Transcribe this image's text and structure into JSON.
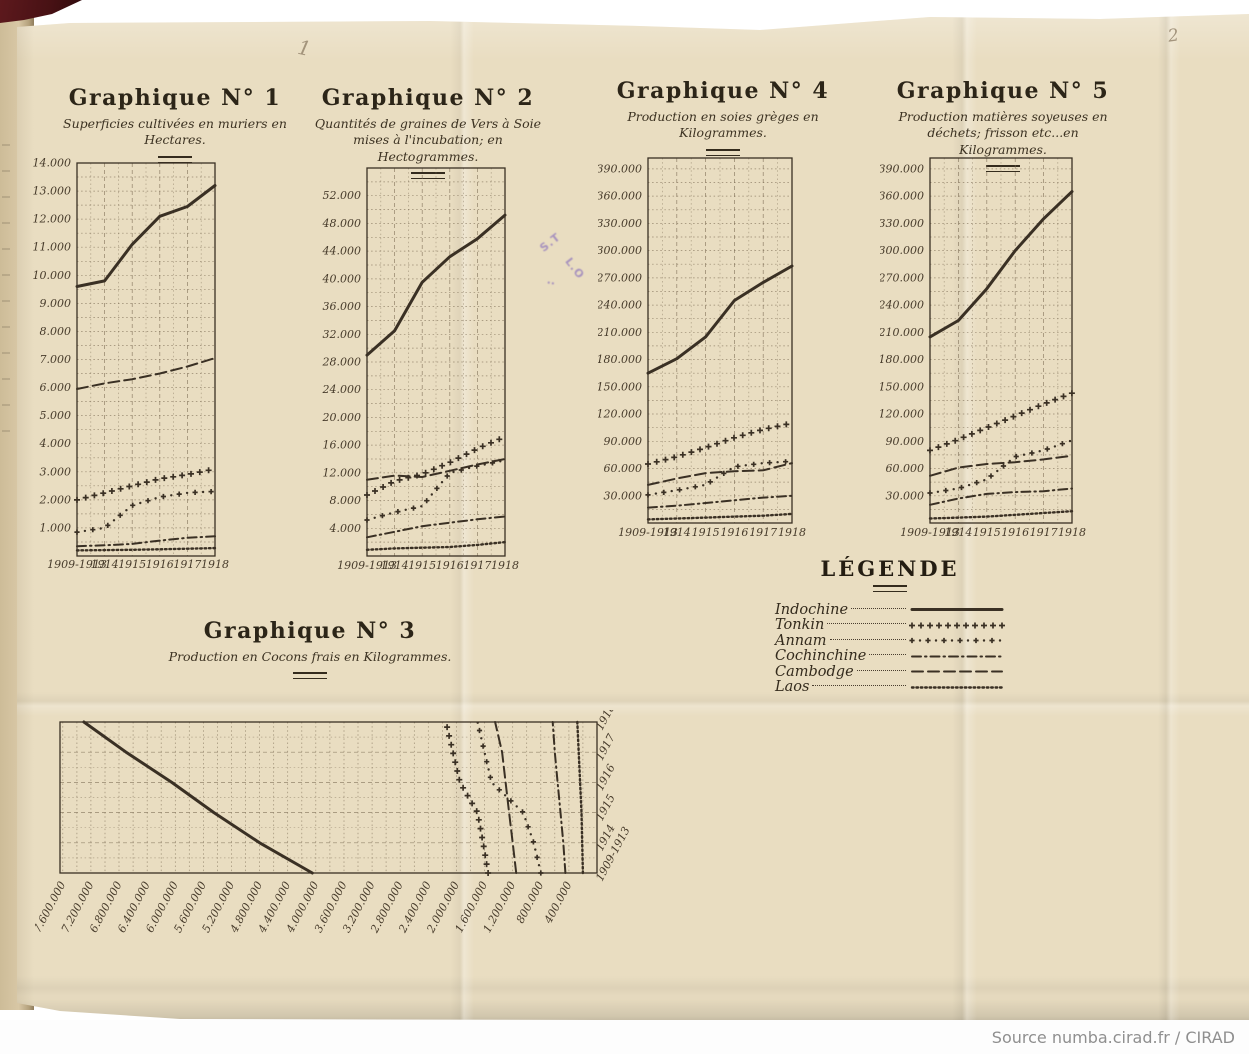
{
  "page": {
    "source_text": "Source numba.cirad.fr / CIRAD",
    "pencil_mark_left": "1",
    "pencil_mark_right": "2",
    "stamp": {
      "line1": "S.T",
      "line2": "L.O",
      "line3": "..",
      "color": "#8d74bd"
    },
    "paper_color": "#e9ddc1",
    "ink_color": "#3a3024"
  },
  "legend": {
    "title": "LÉGENDE",
    "position": "middle-right",
    "entries": [
      {
        "label": "Indochine",
        "style": "solid"
      },
      {
        "label": "Tonkin",
        "style": "plus"
      },
      {
        "label": "Annam",
        "style": "plusdot"
      },
      {
        "label": "Cochinchine",
        "style": "dashdot"
      },
      {
        "label": "Cambodge",
        "style": "dash"
      },
      {
        "label": "Laos",
        "style": "dots"
      }
    ]
  },
  "chart_data": [
    {
      "id": "g1",
      "type": "line",
      "orientation": "normal",
      "number_label": "Graphique N° 1",
      "subtitle": "Superficies cultivées en muriers en Hectares.",
      "categories": [
        "1909-1913",
        "1914",
        "1915",
        "1916",
        "1917",
        "1918"
      ],
      "ylim": [
        0,
        14000
      ],
      "ytick_step": 1000,
      "grid": "dotted",
      "yticks": [
        14000,
        13000,
        12000,
        11000,
        10000,
        9000,
        8000,
        7000,
        6000,
        5000,
        4000,
        3000,
        2000,
        1000
      ],
      "ytick_labels": [
        "14.000",
        "13.000",
        "12.000",
        "11.000",
        "10.000",
        "9.000",
        "8.000",
        "7.000",
        "6.000",
        "5.000",
        "4.000",
        "3.000",
        "2.000",
        "1.000"
      ],
      "series": [
        {
          "name": "Indochine",
          "style": "solid",
          "values": [
            9600,
            9800,
            11100,
            12100,
            12450,
            13200
          ]
        },
        {
          "name": "Tonkin",
          "style": "plus",
          "values": [
            2000,
            2250,
            2500,
            2750,
            2900,
            3100
          ]
        },
        {
          "name": "Annam",
          "style": "plusdot",
          "values": [
            850,
            1000,
            1800,
            2100,
            2250,
            2300
          ]
        },
        {
          "name": "Cochinchine",
          "style": "dashdot",
          "values": [
            350,
            380,
            430,
            550,
            650,
            700
          ]
        },
        {
          "name": "Cambodge",
          "style": "dash",
          "values": [
            5950,
            6150,
            6300,
            6500,
            6750,
            7050
          ]
        },
        {
          "name": "Laos",
          "style": "dots",
          "values": [
            200,
            210,
            220,
            240,
            260,
            280
          ]
        }
      ]
    },
    {
      "id": "g2",
      "type": "line",
      "orientation": "normal",
      "number_label": "Graphique N° 2",
      "subtitle": "Quantités de graines de Vers à Soie mises à l'incubation; en Hectogrammes.",
      "categories": [
        "1909-1913",
        "1914",
        "1915",
        "1916",
        "1917",
        "1918"
      ],
      "ylim": [
        0,
        56000
      ],
      "ytick_step": 4000,
      "grid": "dotted",
      "yticks": [
        52000,
        48000,
        44000,
        40000,
        36000,
        32000,
        28000,
        24000,
        20000,
        16000,
        12000,
        8000,
        4000
      ],
      "ytick_labels": [
        "52.000",
        "48.000",
        "44.000",
        "40.000",
        "36.000",
        "32.000",
        "28.000",
        "24.000",
        "20.000",
        "16.000",
        "12.000",
        "8.000",
        "4.000"
      ],
      "series": [
        {
          "name": "Indochine",
          "style": "solid",
          "values": [
            29000,
            32500,
            39500,
            43200,
            45800,
            49200
          ]
        },
        {
          "name": "Tonkin",
          "style": "plus",
          "values": [
            8800,
            10800,
            11800,
            13500,
            15500,
            17200
          ]
        },
        {
          "name": "Annam",
          "style": "plusdot",
          "values": [
            5200,
            6300,
            7200,
            12000,
            13000,
            13800
          ]
        },
        {
          "name": "Cochinchine",
          "style": "dashdot",
          "values": [
            2700,
            3500,
            4300,
            4800,
            5300,
            5700
          ]
        },
        {
          "name": "Cambodge",
          "style": "dash",
          "values": [
            11000,
            11600,
            11400,
            12300,
            13200,
            14000
          ]
        },
        {
          "name": "Laos",
          "style": "dots",
          "values": [
            900,
            1100,
            1200,
            1300,
            1600,
            2000
          ]
        }
      ]
    },
    {
      "id": "g4",
      "type": "line",
      "orientation": "normal",
      "number_label": "Graphique N° 4",
      "subtitle": "Production en soies grèges en Kilogrammes.",
      "categories": [
        "1909-1913",
        "1914",
        "1915",
        "1916",
        "1917",
        "1918"
      ],
      "ylim": [
        0,
        402000
      ],
      "ytick_step": 30000,
      "grid": "dotted",
      "yticks": [
        390000,
        360000,
        330000,
        300000,
        270000,
        240000,
        210000,
        180000,
        150000,
        120000,
        90000,
        60000,
        30000
      ],
      "ytick_labels": [
        "390.000",
        "360.000",
        "330.000",
        "300.000",
        "270.000",
        "240.000",
        "210.000",
        "180.000",
        "150.000",
        "120.000",
        "90.000",
        "60.000",
        "30.000"
      ],
      "series": [
        {
          "name": "Indochine",
          "style": "solid",
          "values": [
            165000,
            181000,
            205000,
            245000,
            265000,
            283000
          ]
        },
        {
          "name": "Tonkin",
          "style": "plus",
          "values": [
            65000,
            73000,
            83000,
            94000,
            103000,
            110000
          ]
        },
        {
          "name": "Annam",
          "style": "plusdot",
          "values": [
            31000,
            36000,
            42000,
            62000,
            66000,
            68000
          ]
        },
        {
          "name": "Cochinchine",
          "style": "dashdot",
          "values": [
            17000,
            19000,
            22000,
            25000,
            28000,
            30000
          ]
        },
        {
          "name": "Cambodge",
          "style": "dash",
          "values": [
            42000,
            49000,
            55000,
            57000,
            58000,
            66000
          ]
        },
        {
          "name": "Laos",
          "style": "dots",
          "values": [
            4000,
            5000,
            6000,
            7000,
            8000,
            10000
          ]
        }
      ]
    },
    {
      "id": "g5",
      "type": "line",
      "orientation": "normal",
      "number_label": "Graphique N° 5",
      "subtitle": "Production matières soyeuses en déchets; frisson etc...en Kilogrammes.",
      "categories": [
        "1909-1913",
        "1914",
        "1915",
        "1916",
        "1917",
        "1918"
      ],
      "ylim": [
        0,
        402000
      ],
      "ytick_step": 30000,
      "grid": "dotted",
      "yticks": [
        390000,
        360000,
        330000,
        300000,
        270000,
        240000,
        210000,
        180000,
        150000,
        120000,
        90000,
        60000,
        30000
      ],
      "ytick_labels": [
        "390.000",
        "360.000",
        "330.000",
        "300.000",
        "270.000",
        "240.000",
        "210.000",
        "180.000",
        "150.000",
        "120.000",
        "90.000",
        "60.000",
        "30.000"
      ],
      "series": [
        {
          "name": "Indochine",
          "style": "solid",
          "values": [
            205000,
            223000,
            258000,
            300000,
            335000,
            365000
          ]
        },
        {
          "name": "Tonkin",
          "style": "plus",
          "values": [
            80000,
            92000,
            105000,
            118000,
            131000,
            143000
          ]
        },
        {
          "name": "Annam",
          "style": "plusdot",
          "values": [
            33000,
            38000,
            48000,
            73000,
            80000,
            91000
          ]
        },
        {
          "name": "Cochinchine",
          "style": "dashdot",
          "values": [
            20000,
            27000,
            32000,
            34000,
            35000,
            38000
          ]
        },
        {
          "name": "Cambodge",
          "style": "dash",
          "values": [
            52000,
            61000,
            65000,
            67000,
            70000,
            74000
          ]
        },
        {
          "name": "Laos",
          "style": "dots",
          "values": [
            5000,
            6000,
            7000,
            9000,
            11000,
            13000
          ]
        }
      ]
    },
    {
      "id": "g3",
      "type": "line",
      "orientation": "rotated",
      "number_label": "Graphique N° 3",
      "subtitle": "Production en Cocons frais en Kilogrammes.",
      "categories": [
        "1909-1913",
        "1914",
        "1915",
        "1916",
        "1917",
        "1918"
      ],
      "ylim": [
        0,
        7640000
      ],
      "ytick_step": 400000,
      "grid": "dotted",
      "yticks": [
        7600000,
        7200000,
        6800000,
        6400000,
        6000000,
        5600000,
        5200000,
        4800000,
        4400000,
        4000000,
        3600000,
        3200000,
        2800000,
        2400000,
        2000000,
        1600000,
        1200000,
        800000,
        400000
      ],
      "ytick_labels": [
        "7.600.000",
        "7.200.000",
        "6.800.000",
        "6.400.000",
        "6.000.000",
        "5.600.000",
        "5.200.000",
        "4.800.000",
        "4.400.000",
        "4.000.000",
        "3.600.000",
        "3.200.000",
        "2.800.000",
        "2.400.000",
        "2.000.000",
        "1.600.000",
        "1.200.000",
        "800.000",
        "400.000"
      ],
      "series": [
        {
          "name": "Indochine",
          "style": "solid",
          "values": [
            4050000,
            4800000,
            5450000,
            6050000,
            6700000,
            7300000
          ]
        },
        {
          "name": "Tonkin",
          "style": "plus",
          "values": [
            1550000,
            1620000,
            1700000,
            1950000,
            2050000,
            2150000
          ]
        },
        {
          "name": "Annam",
          "style": "plusdot",
          "values": [
            800000,
            900000,
            1050000,
            1500000,
            1600000,
            1700000
          ]
        },
        {
          "name": "Cochinchine",
          "style": "dashdot",
          "values": [
            450000,
            480000,
            520000,
            560000,
            600000,
            630000
          ]
        },
        {
          "name": "Cambodge",
          "style": "dash",
          "values": [
            1150000,
            1200000,
            1250000,
            1300000,
            1350000,
            1450000
          ]
        },
        {
          "name": "Laos",
          "style": "dots",
          "values": [
            200000,
            210000,
            220000,
            240000,
            260000,
            280000
          ]
        }
      ]
    }
  ]
}
